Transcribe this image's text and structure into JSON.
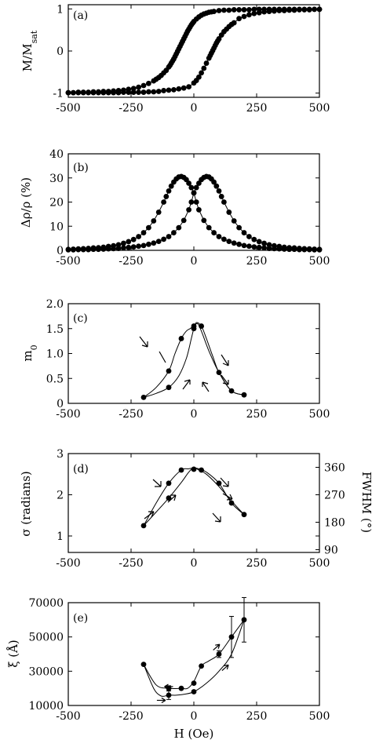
{
  "figure": {
    "x_tick_labels": [
      "-500",
      "-250",
      "0",
      "250",
      "500"
    ],
    "x_axis_label": "H (Oe)"
  },
  "chart_data": [
    {
      "id": "a",
      "type": "line",
      "panel_label": "(a)",
      "ylabel": "M/M",
      "ylabel_sub": "sat",
      "xlim": [
        -500,
        500
      ],
      "ylim": [
        -1.1,
        1.1
      ],
      "yticks": [
        -1,
        0,
        1
      ],
      "ytick_labels": [
        "-1",
        "0",
        "1"
      ],
      "series": [
        {
          "branch": "decreasing field",
          "x": [
            -500,
            -480,
            -460,
            -440,
            -420,
            -400,
            -380,
            -360,
            -340,
            -320,
            -300,
            -280,
            -260,
            -240,
            -220,
            -200,
            -180,
            -160,
            -150,
            -140,
            -130,
            -120,
            -110,
            -100,
            -95,
            -90,
            -85,
            -80,
            -75,
            -70,
            -65,
            -60,
            -55,
            -50,
            -45,
            -40,
            -35,
            -30,
            -25,
            -20,
            -15,
            -10,
            -5,
            0,
            10,
            20,
            30,
            40,
            50,
            60,
            70,
            80,
            100,
            120,
            140,
            160,
            180,
            200,
            220,
            240,
            260,
            280,
            300,
            320,
            340,
            360,
            380,
            400,
            420,
            440,
            460,
            480,
            500
          ],
          "y": [
            -0.99,
            -0.99,
            -0.98,
            -0.98,
            -0.98,
            -0.97,
            -0.97,
            -0.96,
            -0.96,
            -0.95,
            -0.94,
            -0.93,
            -0.91,
            -0.89,
            -0.86,
            -0.82,
            -0.77,
            -0.71,
            -0.67,
            -0.63,
            -0.58,
            -0.52,
            -0.46,
            -0.38,
            -0.34,
            -0.29,
            -0.24,
            -0.19,
            -0.13,
            -0.07,
            -0.01,
            0.05,
            0.11,
            0.17,
            0.23,
            0.29,
            0.35,
            0.41,
            0.47,
            0.52,
            0.57,
            0.62,
            0.66,
            0.7,
            0.76,
            0.81,
            0.85,
            0.88,
            0.9,
            0.92,
            0.93,
            0.94,
            0.96,
            0.97,
            0.97,
            0.98,
            0.98,
            0.98,
            0.98,
            0.99,
            0.99,
            0.99,
            0.99,
            0.99,
            0.99,
            0.99,
            0.99,
            0.99,
            0.99,
            0.99,
            0.99,
            0.99,
            0.99
          ]
        },
        {
          "branch": "increasing field",
          "x": [
            -500,
            -480,
            -460,
            -440,
            -420,
            -400,
            -380,
            -360,
            -340,
            -320,
            -300,
            -280,
            -260,
            -240,
            -220,
            -200,
            -180,
            -160,
            -140,
            -120,
            -100,
            -80,
            -60,
            -40,
            -20,
            0,
            10,
            20,
            30,
            40,
            50,
            60,
            65,
            70,
            75,
            80,
            85,
            90,
            95,
            100,
            110,
            120,
            130,
            140,
            150,
            160,
            180,
            200,
            220,
            240,
            260,
            280,
            300,
            320,
            340,
            360,
            380,
            400,
            420,
            440,
            460,
            480,
            500
          ],
          "y": [
            -0.99,
            -0.99,
            -0.99,
            -0.99,
            -0.99,
            -0.99,
            -0.99,
            -0.99,
            -0.99,
            -0.99,
            -0.99,
            -0.98,
            -0.98,
            -0.98,
            -0.98,
            -0.98,
            -0.97,
            -0.97,
            -0.96,
            -0.94,
            -0.93,
            -0.92,
            -0.9,
            -0.88,
            -0.85,
            -0.76,
            -0.7,
            -0.62,
            -0.52,
            -0.41,
            -0.29,
            -0.17,
            -0.11,
            -0.05,
            0.01,
            0.07,
            0.13,
            0.19,
            0.24,
            0.29,
            0.38,
            0.46,
            0.52,
            0.58,
            0.63,
            0.67,
            0.77,
            0.82,
            0.86,
            0.89,
            0.91,
            0.93,
            0.94,
            0.95,
            0.96,
            0.96,
            0.97,
            0.97,
            0.98,
            0.98,
            0.98,
            0.99,
            0.99
          ]
        }
      ]
    },
    {
      "id": "b",
      "type": "line",
      "panel_label": "(b)",
      "ylabel": "Δρ/ρ (%)",
      "xlim": [
        -500,
        500
      ],
      "ylim": [
        0,
        40
      ],
      "yticks": [
        0,
        10,
        20,
        30,
        40
      ],
      "ytick_labels": [
        "0",
        "10",
        "20",
        "30",
        "40"
      ],
      "series": [
        {
          "branch": "decreasing field",
          "x": [
            -500,
            -480,
            -460,
            -440,
            -420,
            -400,
            -380,
            -360,
            -340,
            -320,
            -300,
            -280,
            -260,
            -240,
            -220,
            -200,
            -180,
            -160,
            -140,
            -120,
            -110,
            -100,
            -90,
            -80,
            -70,
            -60,
            -50,
            -40,
            -30,
            -20,
            -10,
            0,
            10,
            20,
            40,
            60,
            80,
            100,
            120,
            140,
            160,
            180,
            200,
            220,
            240,
            260,
            280,
            300,
            320,
            340,
            360,
            380,
            400,
            420,
            440,
            460,
            480,
            500
          ],
          "y": [
            0.4,
            0.5,
            0.6,
            0.7,
            0.8,
            1.0,
            1.1,
            1.3,
            1.6,
            1.9,
            2.3,
            2.9,
            3.6,
            4.5,
            5.7,
            7.3,
            9.4,
            12.2,
            15.8,
            20.0,
            22.3,
            24.6,
            26.6,
            28.3,
            29.6,
            30.4,
            30.6,
            30.2,
            29.3,
            27.8,
            26.0,
            23.8,
            20.0,
            16.8,
            12.4,
            9.4,
            7.3,
            5.7,
            4.6,
            3.7,
            3.0,
            2.5,
            2.0,
            1.7,
            1.4,
            1.2,
            1.0,
            0.8,
            0.7,
            0.6,
            0.5,
            0.4,
            0.4,
            0.3,
            0.3,
            0.3,
            0.2,
            0.2
          ]
        },
        {
          "branch": "increasing field",
          "x": [
            -500,
            -480,
            -460,
            -440,
            -420,
            -400,
            -380,
            -360,
            -340,
            -320,
            -300,
            -280,
            -260,
            -240,
            -220,
            -200,
            -180,
            -160,
            -140,
            -120,
            -100,
            -80,
            -60,
            -40,
            -20,
            -10,
            0,
            10,
            20,
            30,
            40,
            50,
            60,
            70,
            80,
            90,
            100,
            110,
            120,
            140,
            160,
            180,
            200,
            220,
            240,
            260,
            280,
            300,
            320,
            340,
            360,
            380,
            400,
            420,
            440,
            460,
            480,
            500
          ],
          "y": [
            0.2,
            0.2,
            0.3,
            0.3,
            0.3,
            0.4,
            0.4,
            0.5,
            0.6,
            0.7,
            0.8,
            1.0,
            1.2,
            1.4,
            1.7,
            2.0,
            2.5,
            3.0,
            3.7,
            4.6,
            5.7,
            7.3,
            9.4,
            12.4,
            16.8,
            20.0,
            23.8,
            26.0,
            27.8,
            29.3,
            30.2,
            30.6,
            30.4,
            29.6,
            28.3,
            26.6,
            24.6,
            22.3,
            20.0,
            15.8,
            12.2,
            9.4,
            7.3,
            5.7,
            4.5,
            3.6,
            2.9,
            2.3,
            1.9,
            1.6,
            1.3,
            1.1,
            1.0,
            0.8,
            0.7,
            0.6,
            0.5,
            0.4
          ]
        }
      ]
    },
    {
      "id": "c",
      "type": "scatter",
      "panel_label": "(c)",
      "ylabel": "m",
      "ylabel_sub": "0",
      "xlim": [
        -500,
        500
      ],
      "ylim": [
        0,
        2.0
      ],
      "yticks": [
        0,
        0.5,
        1.0,
        1.5,
        2.0
      ],
      "ytick_labels": [
        "0",
        "0.5",
        "1.0",
        "1.5",
        "2.0"
      ],
      "points": {
        "x": [
          -200,
          -100,
          -100,
          -50,
          0,
          0,
          30,
          100,
          150,
          200
        ],
        "y": [
          0.12,
          0.32,
          0.65,
          1.3,
          1.5,
          1.55,
          1.55,
          0.62,
          0.25,
          0.17
        ]
      },
      "curves": [
        {
          "branch": "decreasing field",
          "x": [
            200,
            150,
            100,
            60,
            30,
            15,
            0,
            -15,
            -30,
            -50,
            -75,
            -100,
            -150,
            -200
          ],
          "y": [
            0.17,
            0.25,
            0.62,
            1.05,
            1.45,
            1.6,
            1.55,
            1.5,
            1.45,
            1.3,
            1.0,
            0.65,
            0.32,
            0.12
          ]
        },
        {
          "branch": "increasing field",
          "x": [
            -200,
            -150,
            -100,
            -60,
            -30,
            -10,
            0,
            10,
            30,
            50,
            75,
            100,
            150,
            200
          ],
          "y": [
            0.12,
            0.2,
            0.32,
            0.55,
            0.9,
            1.3,
            1.5,
            1.62,
            1.55,
            1.3,
            0.95,
            0.62,
            0.25,
            0.17
          ]
        }
      ]
    },
    {
      "id": "d",
      "type": "scatter",
      "panel_label": "(d)",
      "ylabel": "σ (radians)",
      "ylabel_right": "FWHM (°)",
      "xlim": [
        -500,
        500
      ],
      "ylim": [
        0.6,
        3.0
      ],
      "yticks": [
        1,
        2,
        3
      ],
      "ytick_labels": [
        "1",
        "2",
        "3"
      ],
      "y2ticks": [
        90,
        180,
        270,
        360
      ],
      "y2tick_labels": [
        "90",
        "180",
        "270",
        "360"
      ],
      "y2_per_y": 135,
      "points": {
        "x": [
          -200,
          -100,
          -100,
          -50,
          0,
          30,
          100,
          150,
          200
        ],
        "y": [
          1.25,
          1.92,
          2.28,
          2.6,
          2.62,
          2.6,
          2.28,
          1.8,
          1.52
        ]
      },
      "curves": [
        {
          "branch": "decreasing field",
          "x": [
            200,
            150,
            100,
            50,
            20,
            0,
            -20,
            -50,
            -100,
            -150,
            -200
          ],
          "y": [
            1.52,
            1.8,
            2.28,
            2.55,
            2.63,
            2.65,
            2.63,
            2.6,
            2.28,
            1.8,
            1.25
          ]
        },
        {
          "branch": "increasing field",
          "x": [
            -200,
            -150,
            -100,
            -50,
            -20,
            0,
            20,
            50,
            100,
            150,
            200
          ],
          "y": [
            1.25,
            1.58,
            1.92,
            2.3,
            2.55,
            2.66,
            2.6,
            2.5,
            2.2,
            1.85,
            1.52
          ]
        }
      ]
    },
    {
      "id": "e",
      "type": "scatter",
      "panel_label": "(e)",
      "ylabel": "ξ (Å)",
      "xlabel": "H (Oe)",
      "xlim": [
        -500,
        500
      ],
      "ylim": [
        10000,
        70000
      ],
      "yticks": [
        10000,
        30000,
        50000,
        70000
      ],
      "ytick_labels": [
        "10000",
        "30000",
        "50000",
        "70000"
      ],
      "points": {
        "x": [
          -200,
          -100,
          -100,
          -50,
          0,
          0,
          30,
          100,
          150,
          200
        ],
        "y": [
          34000,
          16000,
          20000,
          20000,
          18000,
          23000,
          33000,
          40000,
          50000,
          60000
        ],
        "yerr": [
          0,
          2500,
          1500,
          0,
          0,
          0,
          0,
          2000,
          12000,
          13000
        ]
      },
      "curves": [
        {
          "branch": "decreasing field",
          "x": [
            200,
            150,
            100,
            60,
            30,
            0,
            -25,
            -50,
            -100,
            -150,
            -200
          ],
          "y": [
            60000,
            50000,
            40000,
            36000,
            33000,
            24000,
            20000,
            20000,
            20000,
            22000,
            34000
          ]
        },
        {
          "branch": "increasing field",
          "x": [
            -200,
            -160,
            -130,
            -100,
            -70,
            -40,
            0,
            50,
            100,
            150,
            200
          ],
          "y": [
            34000,
            20000,
            15500,
            16000,
            16000,
            16500,
            18000,
            23000,
            30000,
            40000,
            60000
          ]
        }
      ],
      "arrows": [
        {
          "x": -130,
          "y": 13000,
          "dir": "right"
        },
        {
          "x": -100,
          "y": 21000,
          "dir": "left"
        },
        {
          "x": 90,
          "y": 44000,
          "dir": "up-right"
        },
        {
          "x": 125,
          "y": 32000,
          "dir": "up-right"
        }
      ]
    }
  ]
}
